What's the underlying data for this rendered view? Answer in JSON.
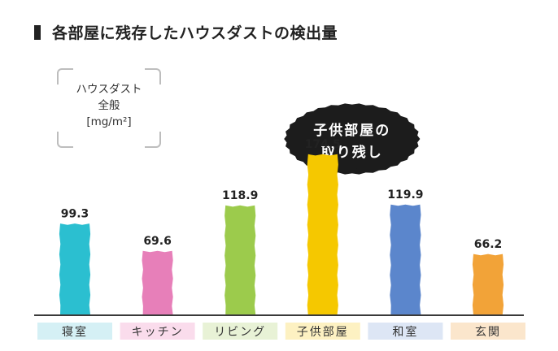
{
  "title": "各部屋に残存したハウスダストの検出量",
  "unit_label": {
    "line1": "ハウスダスト",
    "line2": "全般",
    "line3": "[mg/m²]"
  },
  "callout": {
    "line1": "子供部屋の",
    "line2": "取り残し",
    "target_category": "子供部屋"
  },
  "colors": {
    "baseline": "#3a3a3a",
    "callout_bg": "#1c1c1c"
  },
  "chart_data": {
    "type": "bar",
    "title": "各部屋に残存したハウスダストの検出量",
    "ylabel": "ハウスダスト 全般 [mg/m²]",
    "xlabel": "",
    "ylim": [
      0,
      180
    ],
    "grid": false,
    "categories": [
      "寝室",
      "キッチン",
      "リビング",
      "子供部屋",
      "和室",
      "玄関"
    ],
    "values": [
      99.3,
      69.6,
      118.9,
      174.5,
      119.9,
      66.2
    ],
    "value_labels": [
      "99.3",
      "69.6",
      "118.9",
      "174.5",
      "119.9",
      "66.2"
    ],
    "bar_colors": [
      "#2bbfd0",
      "#e77fb9",
      "#9ccb4c",
      "#f5c800",
      "#5b86cc",
      "#f2a338"
    ],
    "label_bg_colors": [
      "#d5f0f5",
      "#fadcec",
      "#e8f2d6",
      "#fdf1c2",
      "#dde6f5",
      "#fbe6cc"
    ]
  }
}
